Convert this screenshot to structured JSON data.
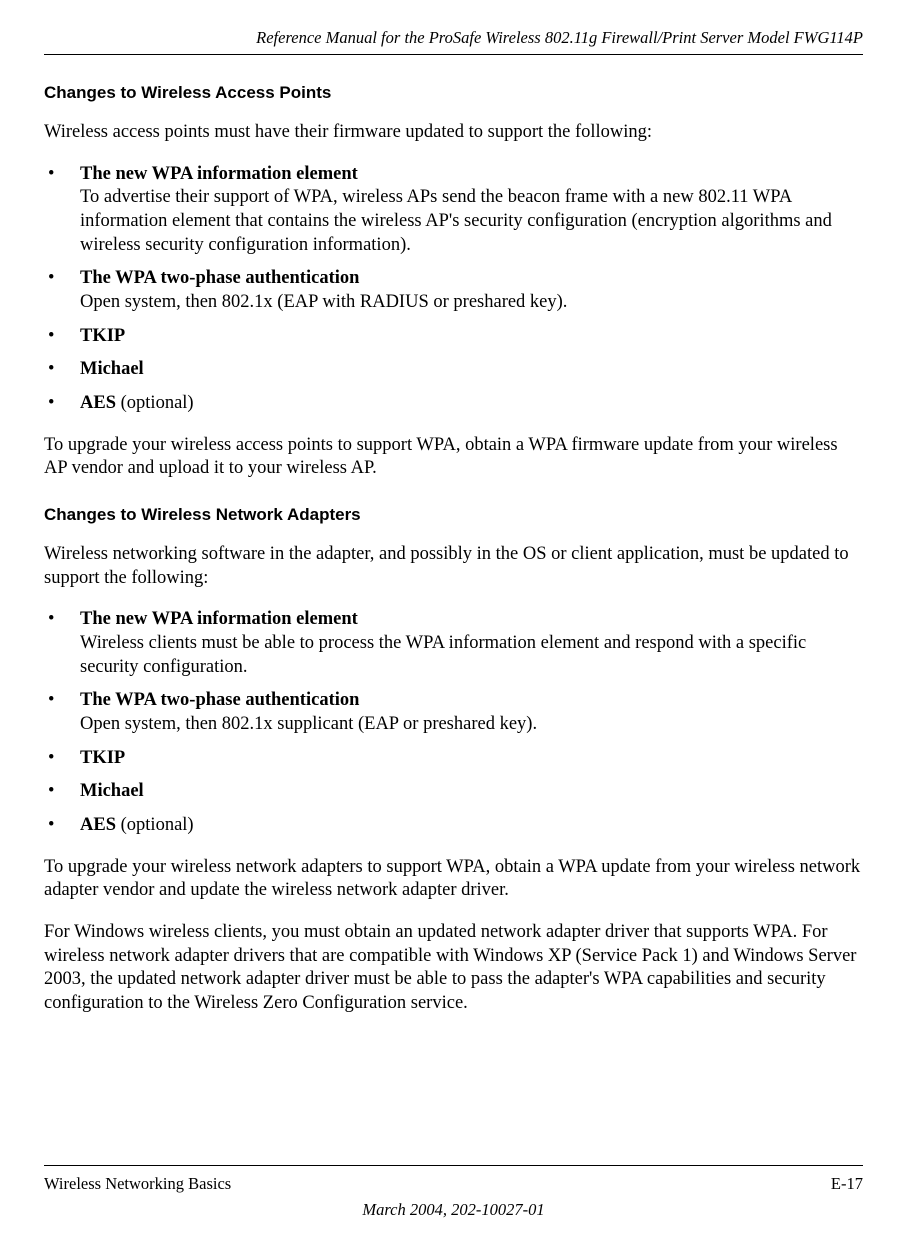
{
  "header": {
    "title": "Reference Manual for the ProSafe Wireless 802.11g  Firewall/Print Server Model FWG114P"
  },
  "section1": {
    "heading": "Changes to Wireless Access Points",
    "intro": "Wireless access points must have their firmware updated to support the following:",
    "items": [
      {
        "bold": "The new WPA information element",
        "rest": "\nTo advertise their support of WPA, wireless APs send the beacon frame with a new 802.11 WPA information element that contains the wireless AP's security configuration (encryption algorithms and wireless security configuration information)."
      },
      {
        "bold": "The WPA two-phase authentication",
        "rest": "\nOpen system, then 802.1x (EAP with RADIUS or preshared key)."
      },
      {
        "bold": "TKIP",
        "rest": ""
      },
      {
        "bold": "Michael",
        "rest": ""
      },
      {
        "bold": "AES",
        "rest": " (optional)"
      }
    ],
    "outro": "To upgrade your wireless access points to support WPA, obtain a WPA firmware update from your wireless AP vendor and upload it to your wireless AP."
  },
  "section2": {
    "heading": "Changes to Wireless Network Adapters",
    "intro": "Wireless networking software in the adapter, and possibly in the OS or client application, must be updated to support the following:",
    "items": [
      {
        "bold": "The new WPA information element",
        "rest": "\nWireless clients must be able to process the WPA information element and respond with a specific security configuration."
      },
      {
        "bold": "The WPA two-phase authentication",
        "rest": "\nOpen system, then 802.1x supplicant (EAP or preshared key)."
      },
      {
        "bold": "TKIP",
        "rest": ""
      },
      {
        "bold": "Michael",
        "rest": ""
      },
      {
        "bold": "AES",
        "rest": " (optional)"
      }
    ],
    "outro1": "To upgrade your wireless network adapters to support WPA, obtain a WPA update from your wireless network adapter vendor and update the wireless network adapter driver.",
    "outro2": "For Windows wireless clients, you must obtain an updated network adapter driver that supports WPA. For wireless network adapter drivers that are compatible with Windows XP (Service Pack 1) and Windows Server 2003, the updated network adapter driver must be able to pass the adapter's WPA capabilities and security configuration to the Wireless Zero Configuration service."
  },
  "footer": {
    "left": "Wireless Networking Basics",
    "right": "E-17",
    "line2": "March 2004, 202-10027-01"
  }
}
